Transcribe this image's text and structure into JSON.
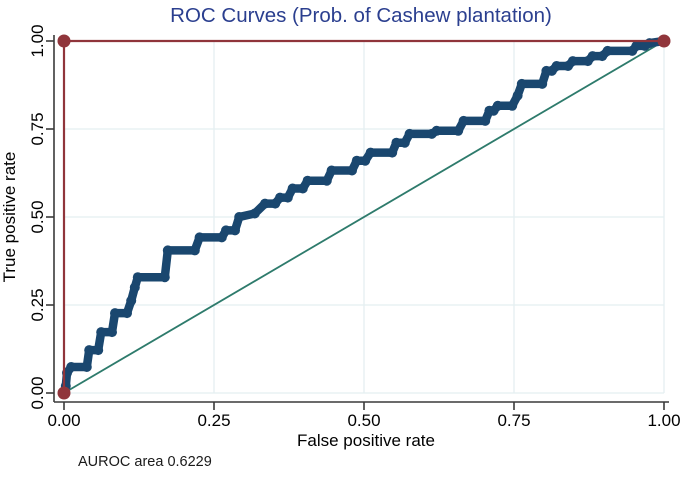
{
  "title": "ROC Curves (Prob. of Cashew plantation)",
  "colors": {
    "title_text": "#2b3f8f",
    "roc_curve": "#1a476f",
    "perfect_line": "#90353b",
    "reference_line": "#2e7b6c",
    "gridline": "#e4eff1",
    "axis_line": "#3a3a3a",
    "tick_text": "#000000",
    "footnote_text": "#1a1a1a",
    "background": "#ffffff"
  },
  "chart_data": {
    "type": "line",
    "title": "ROC Curves (Prob. of Cashew plantation)",
    "xlabel": "False positive rate",
    "ylabel": "True positive rate",
    "xlim": [
      0,
      1
    ],
    "ylim": [
      0,
      1
    ],
    "grid": true,
    "legend_position": "none",
    "xticks": [
      0,
      0.25,
      0.5,
      0.75,
      1
    ],
    "yticks": [
      0,
      0.25,
      0.5,
      0.75,
      1
    ],
    "xtick_labels": [
      "0.00",
      "0.25",
      "0.50",
      "0.75",
      "1.00"
    ],
    "ytick_labels": [
      "0.00",
      "0.25",
      "0.50",
      "0.75",
      "1.00"
    ],
    "annotation": "AUROC area 0.6229",
    "auroc_area": 0.6229,
    "series": [
      {
        "name": "reference-diagonal",
        "color": "#2e7b6c",
        "width": 1.8,
        "markers": false,
        "points": [
          [
            0,
            0
          ],
          [
            1,
            1
          ]
        ]
      },
      {
        "name": "roc-curve",
        "color": "#1a476f",
        "width": 8.5,
        "markers": true,
        "marker_radius": 5,
        "points": [
          [
            0,
            0
          ],
          [
            0.003,
            0.02
          ],
          [
            0.005,
            0.057
          ],
          [
            0.012,
            0.074
          ],
          [
            0.038,
            0.074
          ],
          [
            0.042,
            0.122
          ],
          [
            0.057,
            0.122
          ],
          [
            0.062,
            0.173
          ],
          [
            0.08,
            0.173
          ],
          [
            0.085,
            0.227
          ],
          [
            0.105,
            0.227
          ],
          [
            0.112,
            0.262
          ],
          [
            0.118,
            0.3
          ],
          [
            0.123,
            0.329
          ],
          [
            0.168,
            0.329
          ],
          [
            0.173,
            0.405
          ],
          [
            0.218,
            0.405
          ],
          [
            0.226,
            0.442
          ],
          [
            0.263,
            0.442
          ],
          [
            0.27,
            0.462
          ],
          [
            0.285,
            0.462
          ],
          [
            0.292,
            0.5
          ],
          [
            0.318,
            0.51
          ],
          [
            0.335,
            0.538
          ],
          [
            0.352,
            0.538
          ],
          [
            0.36,
            0.555
          ],
          [
            0.373,
            0.555
          ],
          [
            0.381,
            0.581
          ],
          [
            0.398,
            0.581
          ],
          [
            0.406,
            0.603
          ],
          [
            0.438,
            0.603
          ],
          [
            0.446,
            0.632
          ],
          [
            0.48,
            0.632
          ],
          [
            0.488,
            0.66
          ],
          [
            0.502,
            0.66
          ],
          [
            0.511,
            0.683
          ],
          [
            0.547,
            0.683
          ],
          [
            0.554,
            0.711
          ],
          [
            0.568,
            0.711
          ],
          [
            0.576,
            0.736
          ],
          [
            0.613,
            0.736
          ],
          [
            0.621,
            0.745
          ],
          [
            0.657,
            0.745
          ],
          [
            0.666,
            0.773
          ],
          [
            0.702,
            0.773
          ],
          [
            0.709,
            0.802
          ],
          [
            0.716,
            0.802
          ],
          [
            0.723,
            0.816
          ],
          [
            0.747,
            0.816
          ],
          [
            0.756,
            0.845
          ],
          [
            0.763,
            0.878
          ],
          [
            0.797,
            0.878
          ],
          [
            0.804,
            0.915
          ],
          [
            0.813,
            0.915
          ],
          [
            0.821,
            0.929
          ],
          [
            0.84,
            0.929
          ],
          [
            0.848,
            0.943
          ],
          [
            0.873,
            0.943
          ],
          [
            0.881,
            0.957
          ],
          [
            0.897,
            0.957
          ],
          [
            0.906,
            0.972
          ],
          [
            0.947,
            0.972
          ],
          [
            0.954,
            0.986
          ],
          [
            0.968,
            0.986
          ],
          [
            0.976,
            0.994
          ],
          [
            1,
            1
          ]
        ]
      },
      {
        "name": "perfect-classifier",
        "color": "#90353b",
        "width": 2.2,
        "markers": true,
        "marker_radius": 6.5,
        "points": [
          [
            0,
            0
          ],
          [
            0,
            1
          ],
          [
            1,
            1
          ]
        ]
      }
    ]
  }
}
